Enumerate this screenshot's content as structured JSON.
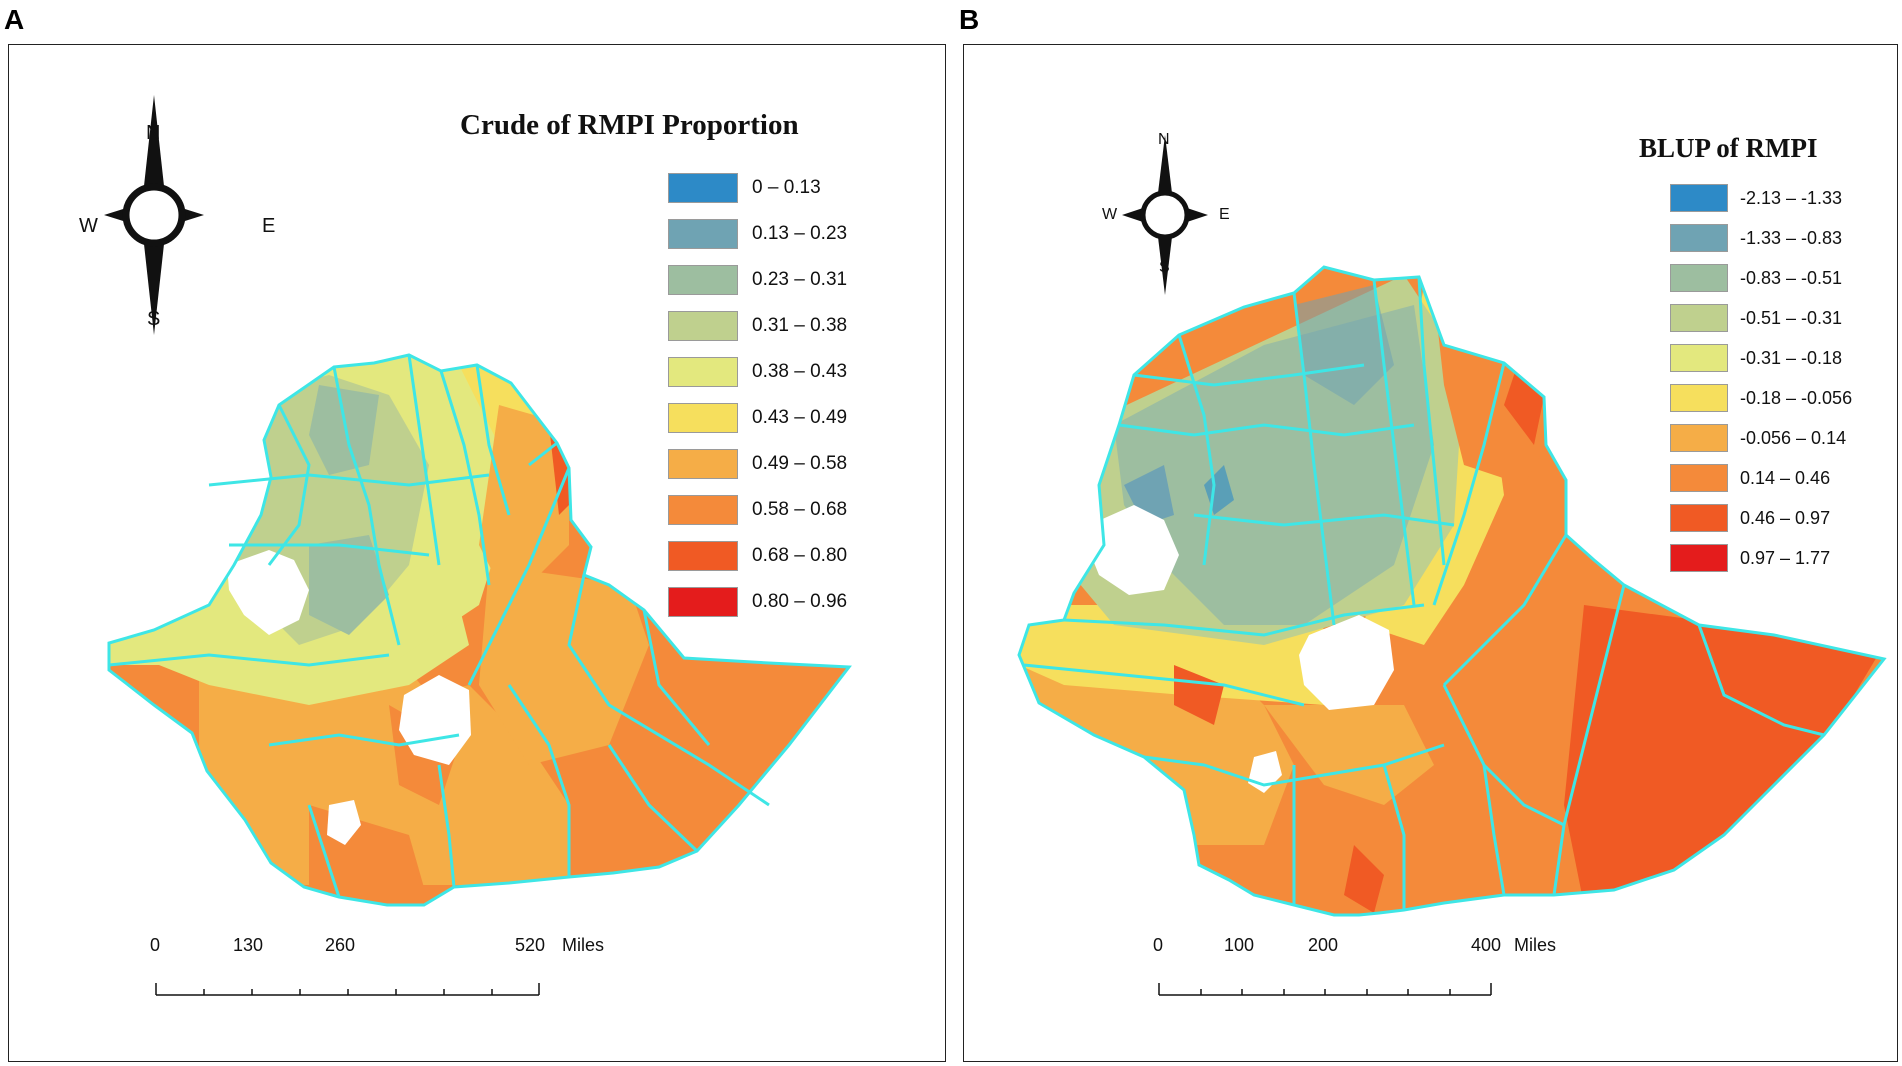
{
  "panels": [
    {
      "letter": "A",
      "title": "Crude of RMPI Proportion",
      "legend": [
        {
          "label": "0 – 0.13",
          "color": "#2d8ac7"
        },
        {
          "label": "0.13 – 0.23",
          "color": "#6fa3b3"
        },
        {
          "label": "0.23 – 0.31",
          "color": "#9dbea0"
        },
        {
          "label": "0.31 – 0.38",
          "color": "#bfd08e"
        },
        {
          "label": "0.38 – 0.43",
          "color": "#e3e87e"
        },
        {
          "label": "0.43 – 0.49",
          "color": "#f6df5d"
        },
        {
          "label": "0.49 – 0.58",
          "color": "#f5ad47"
        },
        {
          "label": "0.58 – 0.68",
          "color": "#f48a3a"
        },
        {
          "label": "0.68 – 0.80",
          "color": "#f05a24"
        },
        {
          "label": "0.80 – 0.96",
          "color": "#e41c1c"
        }
      ],
      "compass": {
        "n": "N",
        "s": "S",
        "e": "E",
        "w": "W"
      },
      "scale": {
        "ticks": [
          "0",
          "130",
          "260",
          "520"
        ],
        "unit": "Miles"
      }
    },
    {
      "letter": "B",
      "title": "BLUP of RMPI",
      "legend": [
        {
          "label": "-2.13 – -1.33",
          "color": "#2d8ac7"
        },
        {
          "label": "-1.33 – -0.83",
          "color": "#6fa3b3"
        },
        {
          "label": "-0.83 – -0.51",
          "color": "#9dbea0"
        },
        {
          "label": "-0.51 – -0.31",
          "color": "#bfd08e"
        },
        {
          "label": "-0.31 – -0.18",
          "color": "#e3e87e"
        },
        {
          "label": "-0.18 – -0.056",
          "color": "#f6df5d"
        },
        {
          "label": "-0.056 – 0.14",
          "color": "#f5ad47"
        },
        {
          "label": "0.14 – 0.46",
          "color": "#f48a3a"
        },
        {
          "label": "0.46 – 0.97",
          "color": "#f05a24"
        },
        {
          "label": "0.97 – 1.77",
          "color": "#e41c1c"
        }
      ],
      "compass": {
        "n": "N",
        "s": "S",
        "e": "E",
        "w": "W"
      },
      "scale": {
        "ticks": [
          "0",
          "100",
          "200",
          "400"
        ],
        "unit": "Miles"
      }
    }
  ],
  "colors": {
    "boundary": "#3ee6e6",
    "frame": "#222222"
  }
}
